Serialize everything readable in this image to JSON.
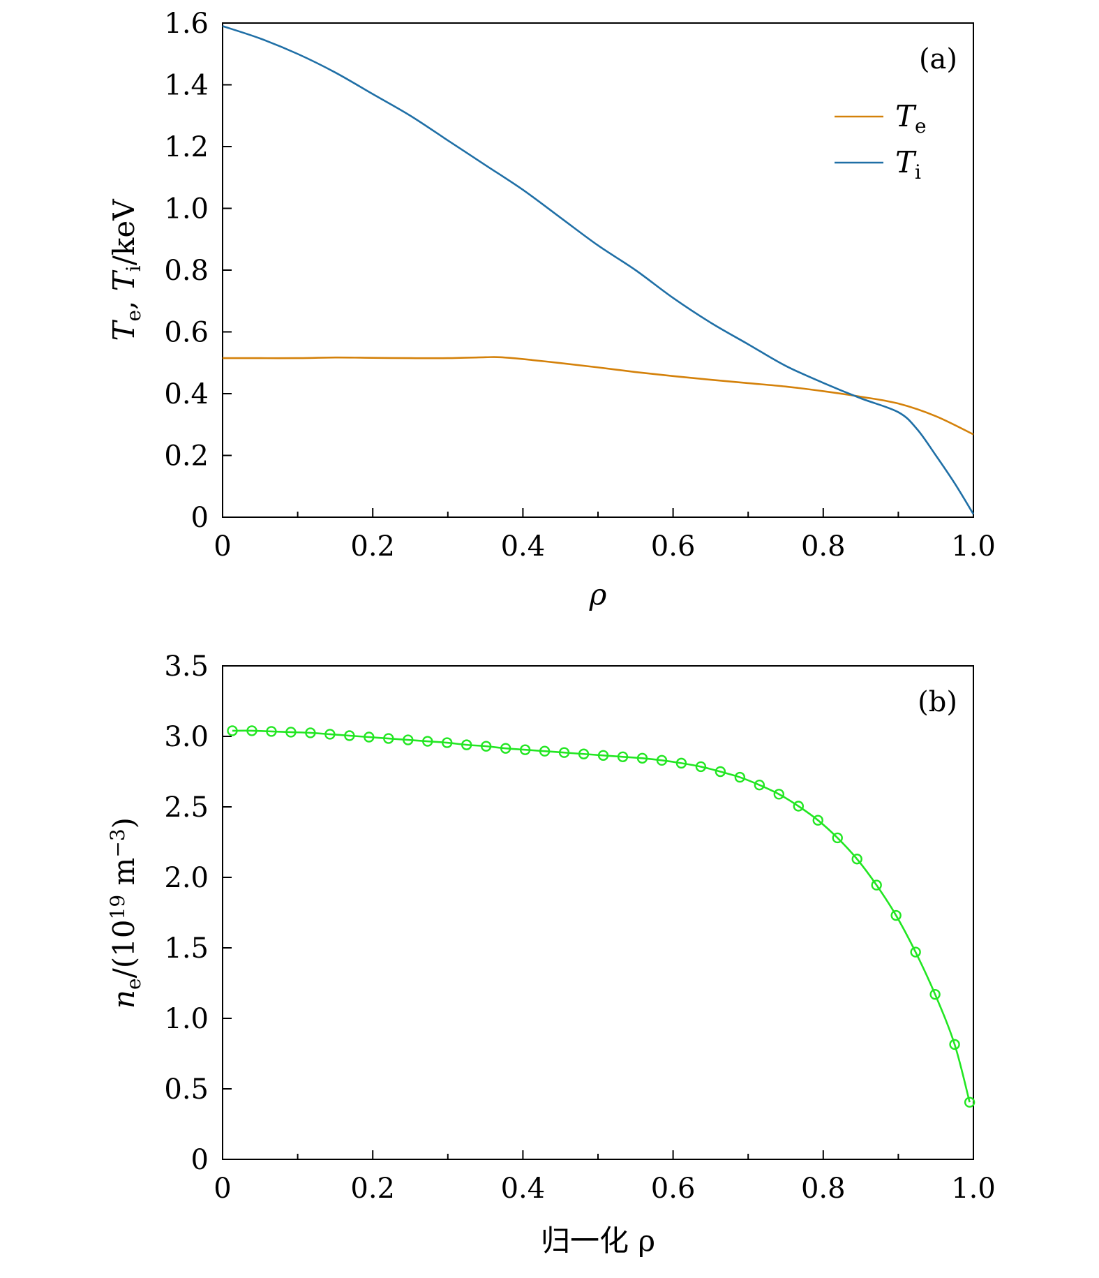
{
  "chart_data": [
    {
      "type": "line",
      "panel_label": "(a)",
      "xlabel": "ρ",
      "ylabel": {
        "parts": [
          "T",
          "e",
          ", ",
          "T",
          "i",
          "/keV"
        ]
      },
      "xlim": [
        0,
        1.0
      ],
      "ylim": [
        0,
        1.6
      ],
      "xticks": [
        "0",
        "0.2",
        "0.4",
        "0.6",
        "0.8",
        "1.0"
      ],
      "yticks": [
        "0",
        "0.2",
        "0.4",
        "0.6",
        "0.8",
        "1.0",
        "1.2",
        "1.4",
        "1.6"
      ],
      "grid": false,
      "legend_position": "top-right",
      "series": [
        {
          "name": "T_e",
          "legend_main": "T",
          "legend_sub": "e",
          "color": "#d4810a",
          "x": [
            0,
            0.05,
            0.1,
            0.15,
            0.2,
            0.25,
            0.3,
            0.35,
            0.37,
            0.4,
            0.45,
            0.5,
            0.55,
            0.6,
            0.65,
            0.7,
            0.75,
            0.8,
            0.85,
            0.9,
            0.95,
            1.0
          ],
          "y": [
            0.515,
            0.515,
            0.515,
            0.517,
            0.516,
            0.515,
            0.515,
            0.518,
            0.518,
            0.512,
            0.499,
            0.485,
            0.47,
            0.457,
            0.445,
            0.434,
            0.423,
            0.408,
            0.39,
            0.368,
            0.327,
            0.268
          ]
        },
        {
          "name": "T_i",
          "legend_main": "T",
          "legend_sub": "i",
          "color": "#1f6fa6",
          "x": [
            0,
            0.05,
            0.1,
            0.15,
            0.2,
            0.25,
            0.3,
            0.35,
            0.4,
            0.45,
            0.5,
            0.55,
            0.6,
            0.65,
            0.7,
            0.75,
            0.8,
            0.85,
            0.9,
            0.925,
            0.95,
            0.975,
            1.0
          ],
          "y": [
            1.59,
            1.55,
            1.5,
            1.44,
            1.37,
            1.3,
            1.22,
            1.14,
            1.06,
            0.97,
            0.88,
            0.8,
            0.71,
            0.63,
            0.56,
            0.49,
            0.435,
            0.385,
            0.34,
            0.285,
            0.2,
            0.11,
            0.01
          ]
        }
      ]
    },
    {
      "type": "line",
      "panel_label": "(b)",
      "xlabel": "归一化 ρ",
      "ylabel": {
        "parts": [
          "n",
          "e",
          "/(10",
          "19",
          " m",
          "−3",
          ")"
        ]
      },
      "xlim": [
        0,
        1.0
      ],
      "ylim": [
        0,
        3.5
      ],
      "xticks": [
        "0",
        "0.2",
        "0.4",
        "0.6",
        "0.8",
        "1.0"
      ],
      "yticks": [
        "0",
        "0.5",
        "1.0",
        "1.5",
        "2.0",
        "2.5",
        "3.0",
        "3.5"
      ],
      "grid": false,
      "series": [
        {
          "color": "#22e622",
          "marker": "circle",
          "x": [
            0.013,
            0.039,
            0.065,
            0.091,
            0.117,
            0.143,
            0.169,
            0.195,
            0.221,
            0.247,
            0.273,
            0.299,
            0.325,
            0.351,
            0.377,
            0.403,
            0.429,
            0.455,
            0.481,
            0.507,
            0.533,
            0.559,
            0.585,
            0.611,
            0.637,
            0.663,
            0.689,
            0.715,
            0.741,
            0.767,
            0.793,
            0.819,
            0.845,
            0.871,
            0.897,
            0.923,
            0.949,
            0.975,
            0.995
          ],
          "y": [
            3.04,
            3.04,
            3.035,
            3.03,
            3.025,
            3.015,
            3.005,
            2.995,
            2.985,
            2.975,
            2.965,
            2.955,
            2.94,
            2.93,
            2.915,
            2.905,
            2.895,
            2.885,
            2.875,
            2.865,
            2.855,
            2.845,
            2.83,
            2.81,
            2.785,
            2.75,
            2.71,
            2.655,
            2.59,
            2.505,
            2.405,
            2.28,
            2.13,
            1.945,
            1.73,
            1.47,
            1.17,
            0.815,
            0.405
          ]
        }
      ]
    }
  ]
}
